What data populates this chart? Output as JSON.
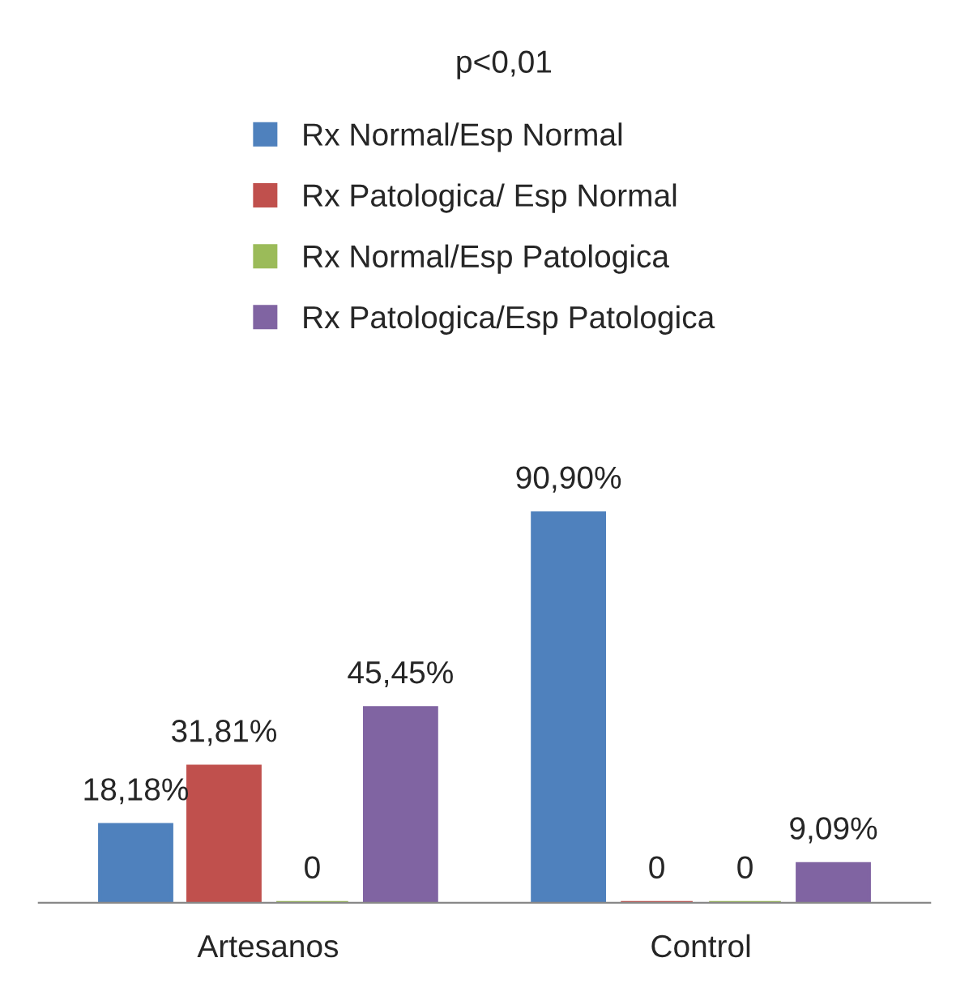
{
  "chart_data": {
    "type": "bar",
    "title": "p<0,01",
    "categories": [
      "Artesanos",
      "Control"
    ],
    "series": [
      {
        "name": "Rx Normal/Esp Normal",
        "color": "#4f81bd",
        "values": [
          18.18,
          90.9
        ],
        "value_labels": [
          "18,18%",
          "90,90%"
        ]
      },
      {
        "name": "Rx Patologica/ Esp Normal",
        "color": "#c0504d",
        "values": [
          31.81,
          0
        ],
        "value_labels": [
          "31,81%",
          "0"
        ]
      },
      {
        "name": "Rx Normal/Esp Patologica",
        "color": "#9bbb59",
        "values": [
          0,
          0
        ],
        "value_labels": [
          "0",
          "0"
        ]
      },
      {
        "name": "Rx Patologica/Esp Patologica",
        "color": "#8064a2",
        "values": [
          45.45,
          9.09
        ],
        "value_labels": [
          "45,45%",
          "9,09%"
        ]
      }
    ],
    "legend": "top",
    "grid": false
  }
}
